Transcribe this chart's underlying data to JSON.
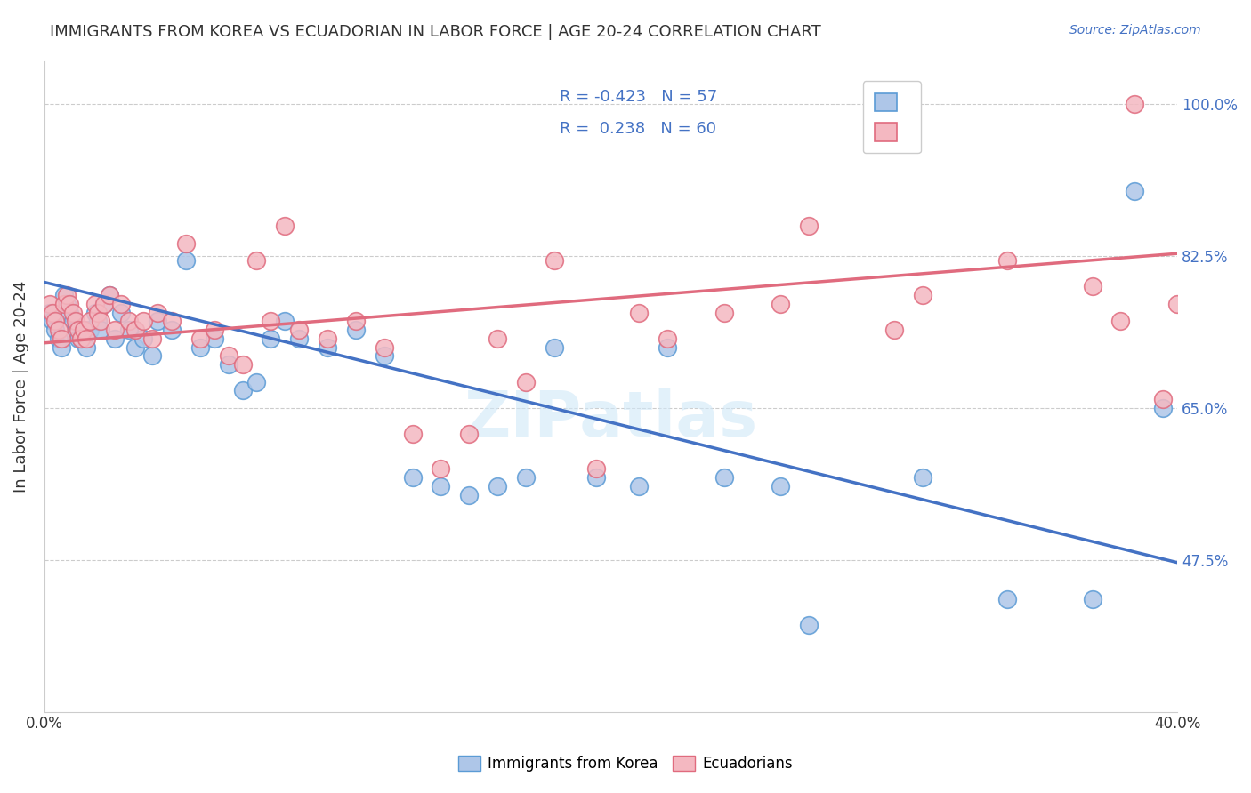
{
  "title": "IMMIGRANTS FROM KOREA VS ECUADORIAN IN LABOR FORCE | AGE 20-24 CORRELATION CHART",
  "source": "Source: ZipAtlas.com",
  "xlabel": "",
  "ylabel": "In Labor Force | Age 20-24",
  "xlim": [
    0.0,
    0.4
  ],
  "ylim": [
    0.3,
    1.05
  ],
  "xticks": [
    0.0,
    0.1,
    0.2,
    0.3,
    0.4
  ],
  "xticklabels": [
    "0.0%",
    "",
    "",
    "",
    "40.0%"
  ],
  "ytick_positions": [
    0.475,
    0.65,
    0.825,
    1.0
  ],
  "ytick_labels": [
    "47.5%",
    "65.0%",
    "82.5%",
    "100.0%"
  ],
  "grid_color": "#cccccc",
  "background_color": "#ffffff",
  "korea_color": "#aec6e8",
  "korea_edge_color": "#5b9bd5",
  "ecuador_color": "#f4b8c1",
  "ecuador_edge_color": "#e06b7e",
  "korea_R": "-0.423",
  "korea_N": "57",
  "ecuador_R": "0.238",
  "ecuador_N": "60",
  "legend_color": "#4472c4",
  "watermark": "ZIPatlas",
  "korea_scatter_x": [
    0.002,
    0.003,
    0.004,
    0.005,
    0.006,
    0.007,
    0.008,
    0.009,
    0.01,
    0.011,
    0.012,
    0.013,
    0.014,
    0.015,
    0.016,
    0.018,
    0.019,
    0.02,
    0.021,
    0.023,
    0.025,
    0.027,
    0.03,
    0.032,
    0.035,
    0.038,
    0.04,
    0.045,
    0.05,
    0.055,
    0.06,
    0.065,
    0.07,
    0.075,
    0.08,
    0.085,
    0.09,
    0.1,
    0.11,
    0.12,
    0.13,
    0.14,
    0.15,
    0.16,
    0.17,
    0.18,
    0.195,
    0.21,
    0.22,
    0.24,
    0.26,
    0.27,
    0.31,
    0.34,
    0.37,
    0.385,
    0.395
  ],
  "korea_scatter_y": [
    0.76,
    0.75,
    0.74,
    0.73,
    0.72,
    0.78,
    0.77,
    0.76,
    0.75,
    0.74,
    0.73,
    0.73,
    0.74,
    0.72,
    0.74,
    0.76,
    0.75,
    0.74,
    0.77,
    0.78,
    0.73,
    0.76,
    0.74,
    0.72,
    0.73,
    0.71,
    0.75,
    0.74,
    0.82,
    0.72,
    0.73,
    0.7,
    0.67,
    0.68,
    0.73,
    0.75,
    0.73,
    0.72,
    0.74,
    0.71,
    0.57,
    0.56,
    0.55,
    0.56,
    0.57,
    0.72,
    0.57,
    0.56,
    0.72,
    0.57,
    0.56,
    0.4,
    0.57,
    0.43,
    0.43,
    0.9,
    0.65
  ],
  "ecuador_scatter_x": [
    0.002,
    0.003,
    0.004,
    0.005,
    0.006,
    0.007,
    0.008,
    0.009,
    0.01,
    0.011,
    0.012,
    0.013,
    0.014,
    0.015,
    0.016,
    0.018,
    0.019,
    0.02,
    0.021,
    0.023,
    0.025,
    0.027,
    0.03,
    0.032,
    0.035,
    0.038,
    0.04,
    0.045,
    0.05,
    0.055,
    0.06,
    0.065,
    0.07,
    0.075,
    0.08,
    0.085,
    0.09,
    0.1,
    0.11,
    0.12,
    0.13,
    0.14,
    0.15,
    0.16,
    0.17,
    0.18,
    0.195,
    0.21,
    0.22,
    0.24,
    0.26,
    0.27,
    0.31,
    0.34,
    0.37,
    0.385,
    0.395,
    0.4,
    0.38,
    0.3
  ],
  "ecuador_scatter_y": [
    0.77,
    0.76,
    0.75,
    0.74,
    0.73,
    0.77,
    0.78,
    0.77,
    0.76,
    0.75,
    0.74,
    0.73,
    0.74,
    0.73,
    0.75,
    0.77,
    0.76,
    0.75,
    0.77,
    0.78,
    0.74,
    0.77,
    0.75,
    0.74,
    0.75,
    0.73,
    0.76,
    0.75,
    0.84,
    0.73,
    0.74,
    0.71,
    0.7,
    0.82,
    0.75,
    0.86,
    0.74,
    0.73,
    0.75,
    0.72,
    0.62,
    0.58,
    0.62,
    0.73,
    0.68,
    0.82,
    0.58,
    0.76,
    0.73,
    0.76,
    0.77,
    0.86,
    0.78,
    0.82,
    0.79,
    1.0,
    0.66,
    0.77,
    0.75,
    0.74
  ],
  "korea_line_x": [
    0.0,
    0.4
  ],
  "korea_line_y": [
    0.795,
    0.472
  ],
  "ecuador_line_x": [
    0.0,
    0.4
  ],
  "ecuador_line_y": [
    0.725,
    0.828
  ],
  "korea_line_color": "#4472c4",
  "ecuador_line_color": "#e06b7e"
}
